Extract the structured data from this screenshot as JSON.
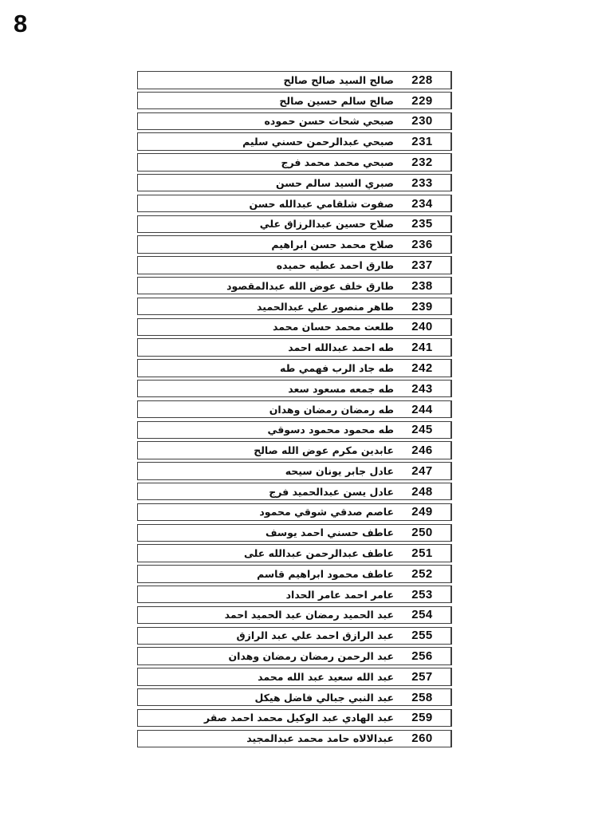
{
  "page": {
    "number": "8"
  },
  "table": {
    "rows": [
      {
        "no": "228",
        "name": "صالح السيد صالح صالح"
      },
      {
        "no": "229",
        "name": "صالح سالم حسين صالح"
      },
      {
        "no": "230",
        "name": "صبحي شحات حسن حموده"
      },
      {
        "no": "231",
        "name": "صبحي عبدالرحمن حسني سليم"
      },
      {
        "no": "232",
        "name": "صبحي محمد محمد فرج"
      },
      {
        "no": "233",
        "name": "صبري السيد سالم حسن"
      },
      {
        "no": "234",
        "name": "صفوت شلقامي عبدالله حسن"
      },
      {
        "no": "235",
        "name": "صلاح حسين عبدالرزاق علي"
      },
      {
        "no": "236",
        "name": "صلاح محمد حسن ابراهيم"
      },
      {
        "no": "237",
        "name": "طارق احمد عطيه حميده"
      },
      {
        "no": "238",
        "name": "طارق خلف عوض الله عبدالمقصود"
      },
      {
        "no": "239",
        "name": "طاهر منصور علي عبدالحميد"
      },
      {
        "no": "240",
        "name": "طلعت محمد حسان محمد"
      },
      {
        "no": "241",
        "name": "طه احمد عبدالله احمد"
      },
      {
        "no": "242",
        "name": "طه جاد الرب فهمي طه"
      },
      {
        "no": "243",
        "name": "طه جمعه مسعود سعد"
      },
      {
        "no": "244",
        "name": "طه رمضان رمضان وهدان"
      },
      {
        "no": "245",
        "name": "طه محمود محمود دسوقي"
      },
      {
        "no": "246",
        "name": "عابدين مكرم عوض الله صالح"
      },
      {
        "no": "247",
        "name": "عادل جابر يونان سيحه"
      },
      {
        "no": "248",
        "name": "عادل يسن عبدالحميد فرج"
      },
      {
        "no": "249",
        "name": "عاصم صدقي شوقي محمود"
      },
      {
        "no": "250",
        "name": "عاطف حسني احمد يوسف"
      },
      {
        "no": "251",
        "name": "عاطف عبدالرحمن عبدالله على"
      },
      {
        "no": "252",
        "name": "عاطف محمود ابراهيم قاسم"
      },
      {
        "no": "253",
        "name": "عامر احمد عامر الحداد"
      },
      {
        "no": "254",
        "name": "عبد الحميد رمضان عبد الحميد احمد"
      },
      {
        "no": "255",
        "name": "عبد الرازق احمد علي عبد الرازق"
      },
      {
        "no": "256",
        "name": "عبد الرحمن رمضان رمضان وهدان"
      },
      {
        "no": "257",
        "name": "عبد الله سعيد عبد الله محمد"
      },
      {
        "no": "258",
        "name": "عبد النبي جبالي فاضل هيكل"
      },
      {
        "no": "259",
        "name": "عبد الهادي عبد الوكيل محمد احمد صقر"
      },
      {
        "no": "260",
        "name": "عبدالالاه حامد محمد عبدالمجيد"
      }
    ]
  }
}
